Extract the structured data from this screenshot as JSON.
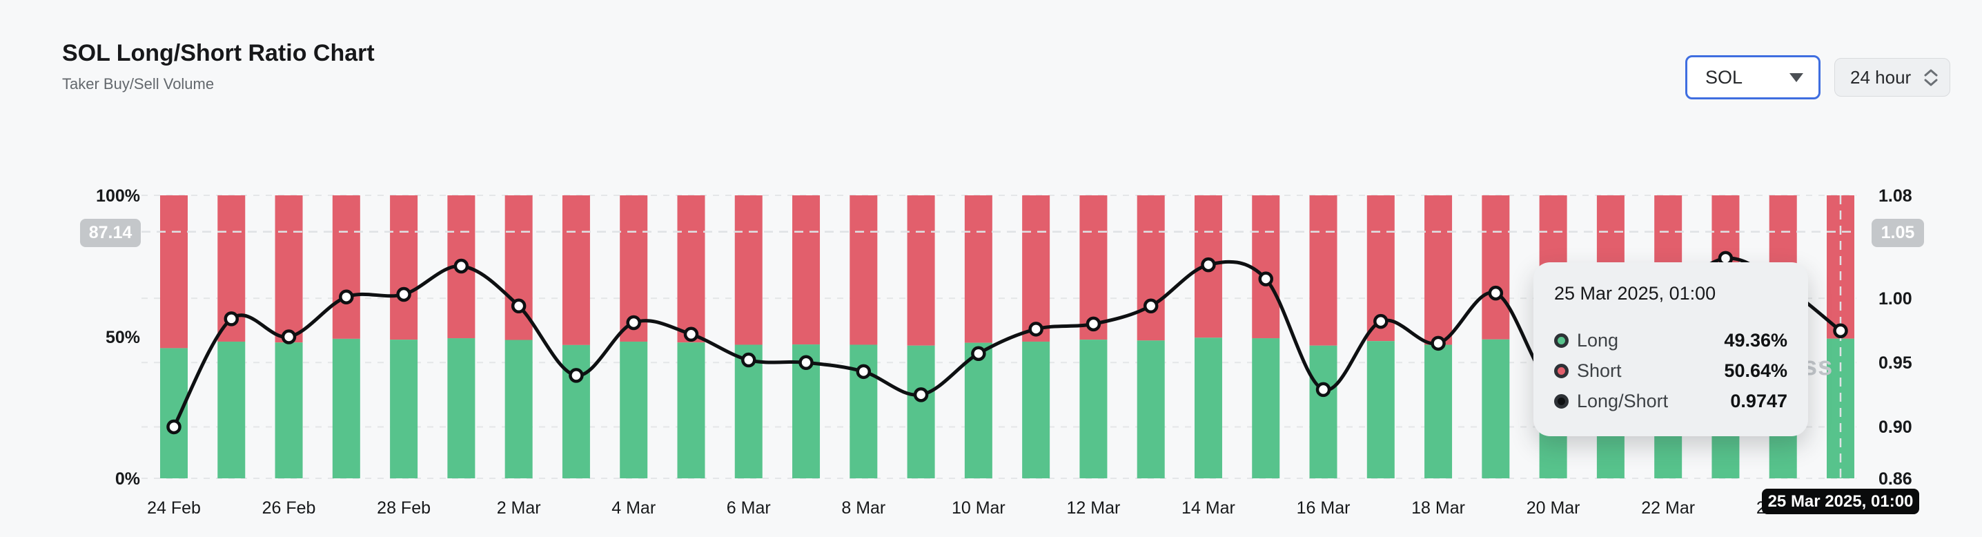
{
  "header": {
    "title": "SOL Long/Short Ratio Chart",
    "subtitle": "Taker Buy/Sell Volume"
  },
  "controls": {
    "symbol_value": "SOL",
    "interval_value": "24 hour"
  },
  "colors": {
    "long_green": "#57c38c",
    "short_red": "#e25f6c",
    "ratio_line": "#0e1012",
    "dot_fill": "#ffffff",
    "grid": "#e4e6e8",
    "crosshair": "#dfe2e5",
    "axis_text": "#17191b",
    "badge_gray_bg": "#c4c7ca",
    "badge_black_bg": "#0a0b0c",
    "tooltip_bg": "#eef0f2",
    "page_bg": "#f7f8f9",
    "select_focus_border": "#3f6ee0"
  },
  "chart_data": {
    "type": "combo",
    "subtype": [
      "stacked-bar",
      "line"
    ],
    "title": "SOL Long/Short Ratio Chart",
    "categories": [
      "24 Feb",
      "25 Feb",
      "26 Feb",
      "27 Feb",
      "28 Feb",
      "1 Mar",
      "2 Mar",
      "3 Mar",
      "4 Mar",
      "5 Mar",
      "6 Mar",
      "7 Mar",
      "8 Mar",
      "9 Mar",
      "10 Mar",
      "11 Mar",
      "12 Mar",
      "13 Mar",
      "14 Mar",
      "15 Mar",
      "16 Mar",
      "17 Mar",
      "18 Mar",
      "19 Mar",
      "20 Mar",
      "21 Mar",
      "22 Mar",
      "23 Mar",
      "24 Mar",
      "25 Mar"
    ],
    "x_tick_every": 2,
    "series": [
      {
        "name": "Long",
        "type": "bar",
        "unit": "%",
        "color": "#57c38c",
        "values": [
          46.0,
          48.3,
          48.0,
          49.3,
          49.0,
          49.5,
          48.9,
          47.1,
          48.3,
          48.0,
          47.2,
          47.3,
          47.2,
          46.9,
          47.9,
          48.3,
          49.0,
          48.7,
          49.7,
          49.5,
          46.9,
          48.5,
          47.2,
          49.1,
          48.0,
          48.0,
          48.5,
          49.5,
          49.0,
          49.36
        ]
      },
      {
        "name": "Short",
        "type": "bar",
        "unit": "%",
        "color": "#e25f6c",
        "values": [
          54.0,
          51.7,
          52.0,
          50.7,
          51.0,
          50.5,
          51.1,
          52.9,
          51.7,
          52.0,
          52.8,
          52.7,
          52.8,
          53.1,
          52.1,
          51.7,
          51.0,
          51.3,
          50.3,
          50.5,
          53.1,
          51.5,
          52.8,
          50.9,
          52.0,
          52.0,
          51.5,
          50.5,
          51.0,
          50.64
        ]
      },
      {
        "name": "Long/Short",
        "type": "line",
        "color": "#0e1012",
        "values": [
          0.9,
          0.984,
          0.97,
          1.001,
          1.003,
          1.025,
          0.994,
          0.94,
          0.981,
          0.972,
          0.952,
          0.95,
          0.943,
          0.925,
          0.957,
          0.976,
          0.98,
          0.994,
          1.026,
          1.015,
          0.929,
          0.982,
          0.965,
          1.004,
          0.932,
          0.96,
          1.0,
          1.031,
          1.01,
          0.9747
        ]
      }
    ],
    "left_axis": {
      "ticks": [
        {
          "label": "100%",
          "value": 100
        },
        {
          "label": "50%",
          "value": 50
        },
        {
          "label": "0%",
          "value": 0
        }
      ],
      "min": 0,
      "max": 100
    },
    "right_axis": {
      "ticks": [
        {
          "label": "1.08",
          "value": 1.08
        },
        {
          "label": "1.00",
          "value": 1.0
        },
        {
          "label": "0.95",
          "value": 0.95
        },
        {
          "label": "0.90",
          "value": 0.9
        },
        {
          "label": "0.86",
          "value": 0.86
        }
      ],
      "min": 0.86,
      "max": 1.08
    },
    "grid": true,
    "legend_position": "none"
  },
  "crosshair": {
    "left_badge": "87.14",
    "right_badge": "1.05",
    "h_percent": 87.14,
    "v_category": "25 Mar",
    "bottom_badge": "25 Mar 2025, 01:00"
  },
  "tooltip": {
    "title": "25 Mar 2025, 01:00",
    "rows": [
      {
        "label": "Long",
        "value": "49.36%",
        "color": "#57c38c"
      },
      {
        "label": "Short",
        "value": "50.64%",
        "color": "#e25f6c"
      },
      {
        "label": "Long/Short",
        "value": "0.9747",
        "color": "#0e1012"
      }
    ]
  },
  "watermark": {
    "visible_text": "ss"
  }
}
